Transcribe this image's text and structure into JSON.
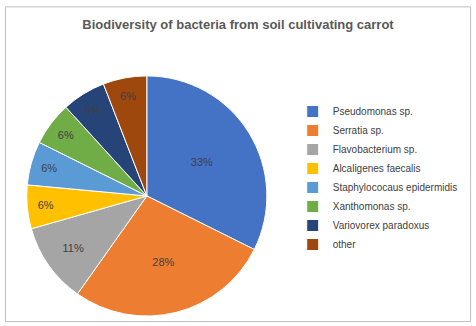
{
  "chart_data": {
    "type": "pie",
    "title": "Biodiversity of bacteria from soil cultivating carrot",
    "categories": [
      "Pseudomonas sp.",
      "Serratia sp.",
      "Flavobacterium sp.",
      "Alcaligenes faecalis",
      "Staphylococaus epidermidis",
      "Xanthomonas sp.",
      "Variovorex paradoxus",
      "other"
    ],
    "values": [
      33,
      28,
      11,
      6,
      6,
      6,
      6,
      6
    ],
    "value_labels": [
      "33%",
      "28%",
      "11%",
      "6%",
      "6%",
      "6%",
      "6%",
      "6%"
    ],
    "colors": [
      "#4472c4",
      "#ed7d31",
      "#a5a5a5",
      "#ffc000",
      "#5b9bd5",
      "#70ad47",
      "#264478",
      "#9e480e"
    ],
    "data_labels": true,
    "legend": "right"
  }
}
